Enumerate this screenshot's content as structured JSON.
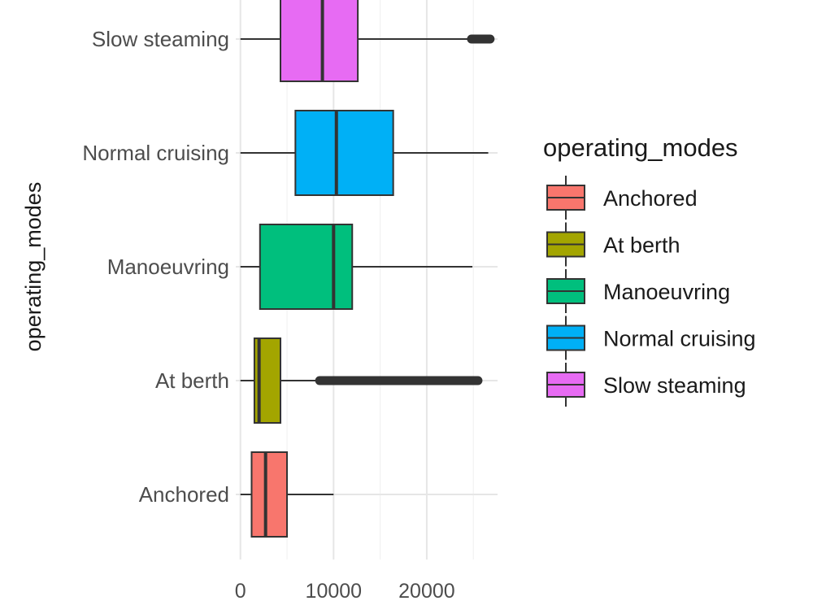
{
  "chart_data": {
    "type": "boxplot",
    "orientation": "horizontal",
    "xlabel": "",
    "ylabel": "operating_modes",
    "xlim": [
      -500,
      27600
    ],
    "xticks": [
      0,
      10000,
      20000
    ],
    "xtick_labels": [
      "0",
      "10000",
      "20000"
    ],
    "grid": true,
    "categories": [
      "Anchored",
      "At berth",
      "Manoeuvring",
      "Normal cruising",
      "Slow steaming"
    ],
    "colors": [
      "#F8766D",
      "#A3A500",
      "#00BF7D",
      "#00B0F6",
      "#E76BF3"
    ],
    "boxes": [
      {
        "category": "Anchored",
        "whisker_low": 0,
        "q1": 1200,
        "median": 2700,
        "q3": 5000,
        "whisker_high": 10000,
        "outliers": []
      },
      {
        "category": "At berth",
        "whisker_low": 0,
        "q1": 1500,
        "median": 2000,
        "q3": 4300,
        "whisker_high": 8500,
        "outliers_range": [
          8500,
          25500
        ]
      },
      {
        "category": "Manoeuvring",
        "whisker_low": 0,
        "q1": 2100,
        "median": 10000,
        "q3": 12000,
        "whisker_high": 24900,
        "outliers": []
      },
      {
        "category": "Normal cruising",
        "whisker_low": 0,
        "q1": 5900,
        "median": 10300,
        "q3": 16400,
        "whisker_high": 26600,
        "outliers": []
      },
      {
        "category": "Slow steaming",
        "whisker_low": 0,
        "q1": 4300,
        "median": 8800,
        "q3": 12600,
        "whisker_high": 24800,
        "outliers_range": [
          24800,
          26800
        ]
      }
    ],
    "legend": {
      "title": "operating_modes",
      "position": "right",
      "entries": [
        "Anchored",
        "At berth",
        "Manoeuvring",
        "Normal cruising",
        "Slow steaming"
      ]
    }
  }
}
